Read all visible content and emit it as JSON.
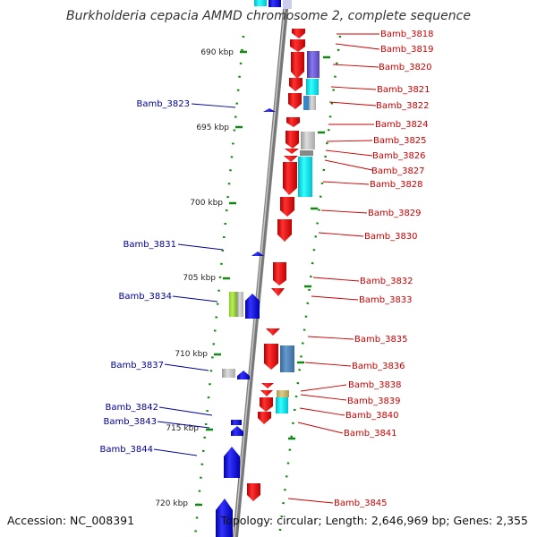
{
  "title": "Burkholderia cepacia AMMD chromosome 2, complete sequence",
  "accession": "Accession: NC_008391",
  "topology": "Topology: circular; Length: 2,646,969 bp; Genes: 2,355",
  "colors": {
    "forward_gene": "#ee1111",
    "reverse_gene": "#1111dd",
    "forward_label": "#cc0000",
    "reverse_label": "#000099",
    "backbone": "#888888",
    "tick": "#118811"
  },
  "kbp_ticks": [
    "690 kbp",
    "695 kbp",
    "700 kbp",
    "705 kbp",
    "710 kbp",
    "715 kbp",
    "720 kbp"
  ],
  "right_genes": [
    "Bamb_3818",
    "Bamb_3819",
    "Bamb_3820",
    "Bamb_3821",
    "Bamb_3822",
    "Bamb_3824",
    "Bamb_3825",
    "Bamb_3826",
    "Bamb_3827",
    "Bamb_3828",
    "Bamb_3829",
    "Bamb_3830",
    "Bamb_3832",
    "Bamb_3833",
    "Bamb_3835",
    "Bamb_3836",
    "Bamb_3838",
    "Bamb_3839",
    "Bamb_3840",
    "Bamb_3841",
    "Bamb_3845"
  ],
  "left_genes": [
    "Bamb_3823",
    "Bamb_3831",
    "Bamb_3834",
    "Bamb_3837",
    "Bamb_3842",
    "Bamb_3843",
    "Bamb_3844"
  ]
}
